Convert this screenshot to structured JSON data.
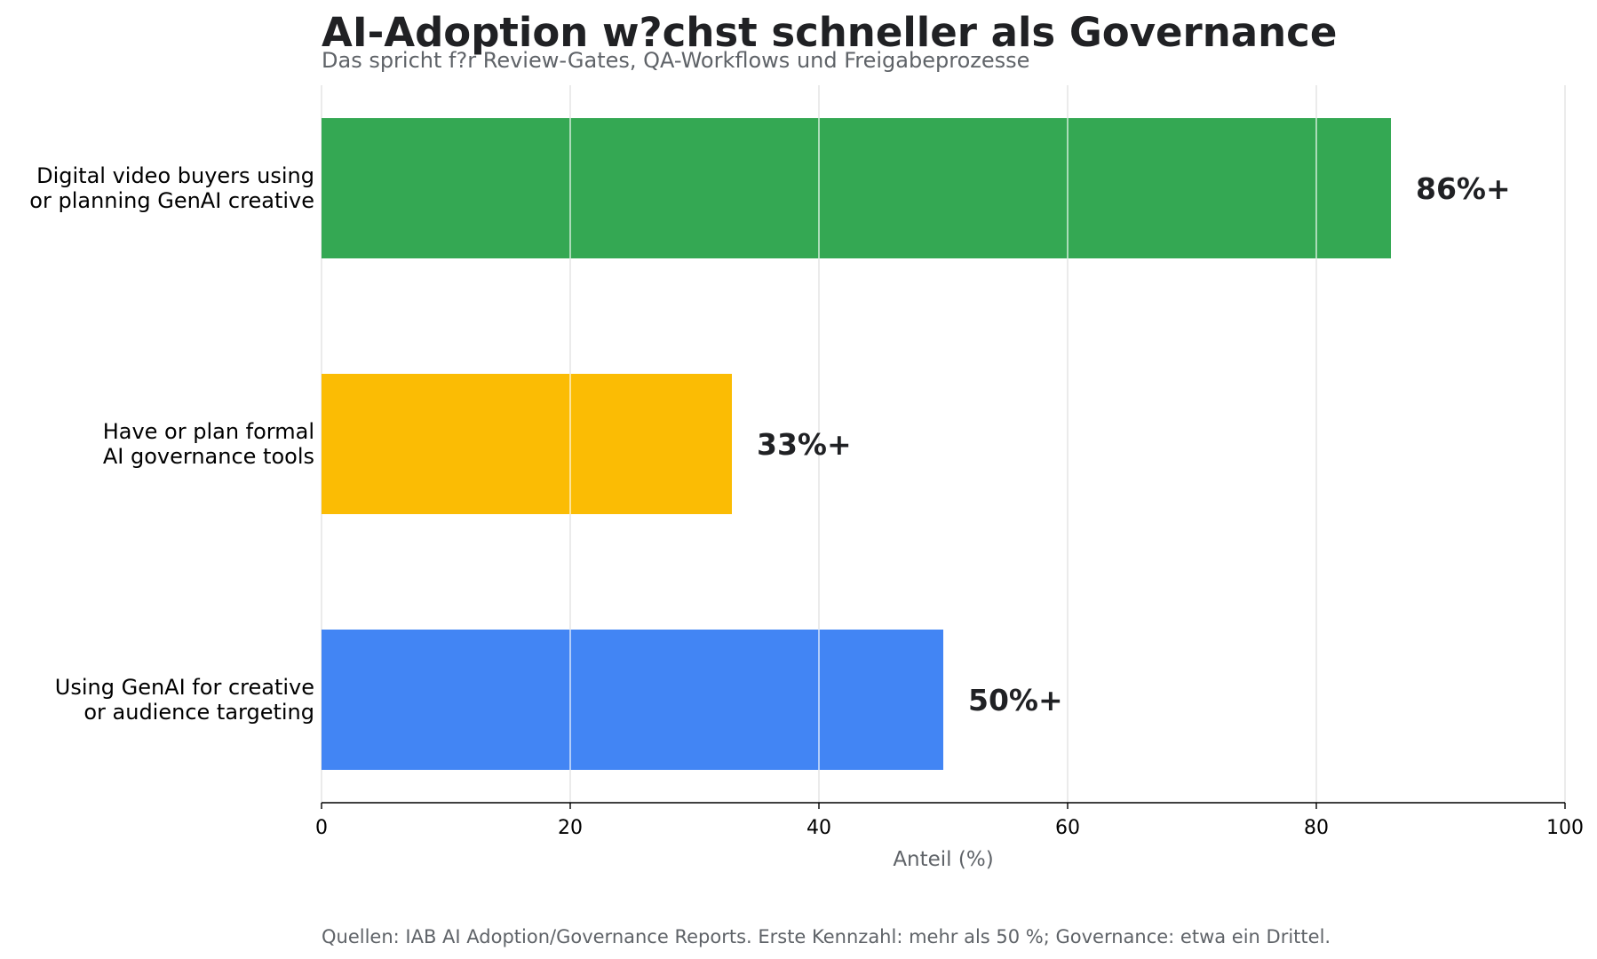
{
  "chart_data": {
    "type": "bar",
    "orientation": "horizontal",
    "title": "AI-Adoption w?chst schneller als Governance",
    "subtitle": "Das spricht f?r Review-Gates, QA-Workflows und Freigabeprozesse",
    "categories": [
      [
        "Digital video buyers using",
        "or planning GenAI creative"
      ],
      [
        "Have or plan formal",
        "AI governance tools"
      ],
      [
        "Using GenAI for creative",
        "or audience targeting"
      ]
    ],
    "values": [
      86,
      33,
      50
    ],
    "value_labels": [
      "86%+",
      "33%+",
      "50%+"
    ],
    "colors": [
      "#34a853",
      "#fbbc04",
      "#4285f4"
    ],
    "xlabel": "Anteil (%)",
    "ylabel": "",
    "xlim": [
      0,
      100
    ],
    "xticks": [
      0,
      20,
      40,
      60,
      80,
      100
    ],
    "grid": true,
    "grid_color": "#e0e0e0",
    "legend": false,
    "source": "Quellen: IAB AI Adoption/Governance Reports. Erste Kennzahl: mehr als 50 %; Governance: etwa ein Drittel."
  }
}
